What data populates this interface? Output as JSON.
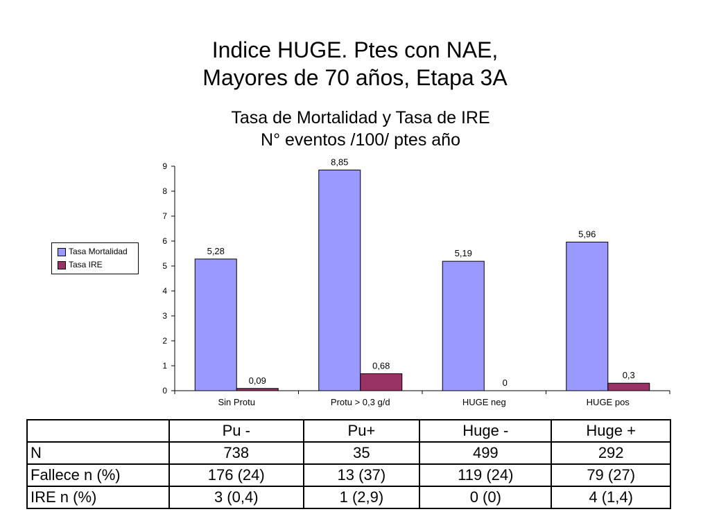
{
  "header": {
    "title_line1": "Indice HUGE. Ptes con NAE,",
    "title_line2": "Mayores de 70 años, Etapa 3A"
  },
  "chart_data": {
    "type": "bar",
    "title": "Tasa de Mortalidad y Tasa de IRE",
    "subtitle": "N° eventos /100/ ptes año",
    "categories": [
      "Sin Protu",
      "Protu > 0,3 g/d",
      "HUGE neg",
      "HUGE pos"
    ],
    "series": [
      {
        "name": "Tasa Mortalidad",
        "values": [
          5.28,
          8.85,
          5.19,
          5.96
        ],
        "labels": [
          "5,28",
          "8,85",
          "5,19",
          "5,96"
        ],
        "color": "#9999ff"
      },
      {
        "name": "Tasa IRE",
        "values": [
          0.09,
          0.68,
          0,
          0.3
        ],
        "labels": [
          "0,09",
          "0,68",
          "0",
          "0,3"
        ],
        "color": "#993366"
      }
    ],
    "ylim": [
      0,
      9
    ],
    "yticks": [
      0,
      1,
      2,
      3,
      4,
      5,
      6,
      7,
      8,
      9
    ],
    "xlabel": "",
    "ylabel": "",
    "legend_position": "left",
    "grid": false
  },
  "table": {
    "headers": [
      "",
      "Pu -",
      "Pu+",
      "Huge -",
      "Huge +"
    ],
    "rows": [
      [
        "N",
        "738",
        "35",
        "499",
        "292"
      ],
      [
        "Fallece n (%)",
        "176 (24)",
        "13 (37)",
        "119 (24)",
        "79 (27)"
      ],
      [
        "IRE n (%)",
        "3 (0,4)",
        "1 (2,9)",
        "0 (0)",
        "4 (1,4)"
      ]
    ]
  }
}
